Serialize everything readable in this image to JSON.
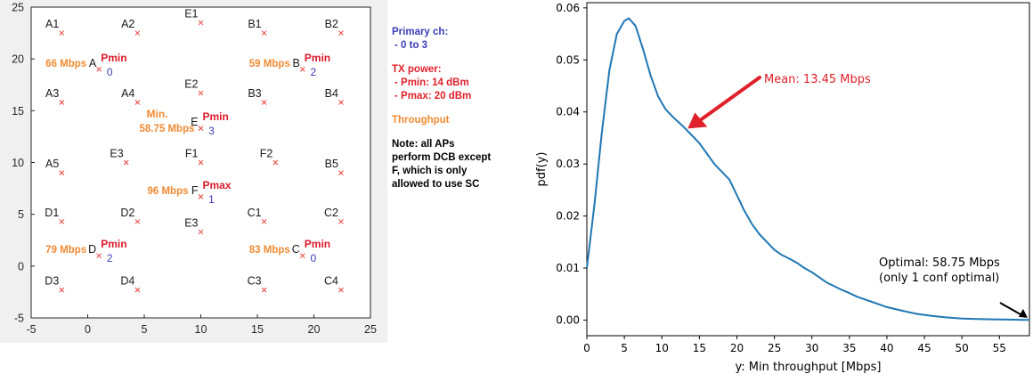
{
  "layout_plot": {
    "xticks": [
      -5,
      0,
      5,
      10,
      15,
      20,
      25
    ],
    "yticks": [
      -5,
      0,
      5,
      10,
      15,
      20,
      25
    ],
    "xlim": [
      -5,
      25
    ],
    "ylim": [
      -5,
      25
    ],
    "stations": [
      {
        "name": "A1",
        "x": -2.3,
        "y": 22.5
      },
      {
        "name": "A2",
        "x": 4.4,
        "y": 22.5
      },
      {
        "name": "B1",
        "x": 15.6,
        "y": 22.5
      },
      {
        "name": "B2",
        "x": 22.4,
        "y": 22.5
      },
      {
        "name": "E1",
        "x": 10,
        "y": 23.5
      },
      {
        "name": "A3",
        "x": -2.3,
        "y": 15.8
      },
      {
        "name": "A4",
        "x": 4.4,
        "y": 15.8
      },
      {
        "name": "B3",
        "x": 15.6,
        "y": 15.8
      },
      {
        "name": "B4",
        "x": 22.4,
        "y": 15.8
      },
      {
        "name": "E2",
        "x": 10,
        "y": 16.7
      },
      {
        "name": "A5",
        "x": -2.3,
        "y": 9
      },
      {
        "name": "E3",
        "x": 3.4,
        "y": 10
      },
      {
        "name": "F1",
        "x": 10,
        "y": 10
      },
      {
        "name": "F2",
        "x": 16.6,
        "y": 10
      },
      {
        "name": "B5",
        "x": 22.4,
        "y": 9
      },
      {
        "name": "D1",
        "x": -2.3,
        "y": 4.3
      },
      {
        "name": "D2",
        "x": 4.4,
        "y": 4.3
      },
      {
        "name": "C1",
        "x": 15.6,
        "y": 4.3
      },
      {
        "name": "C2",
        "x": 22.4,
        "y": 4.3
      },
      {
        "name": "E3",
        "x": 10,
        "y": 3.3
      },
      {
        "name": "D3",
        "x": -2.3,
        "y": -2.3
      },
      {
        "name": "D4",
        "x": 4.4,
        "y": -2.3
      },
      {
        "name": "C3",
        "x": 15.6,
        "y": -2.3
      },
      {
        "name": "C4",
        "x": 22.4,
        "y": -2.3
      }
    ],
    "aps": [
      {
        "name": "A",
        "x": 1,
        "y": 19,
        "power": "Pmin",
        "channel": "0",
        "throughput": "66 Mbps",
        "tp_side": "left"
      },
      {
        "name": "B",
        "x": 19,
        "y": 19,
        "power": "Pmin",
        "channel": "2",
        "throughput": "59 Mbps",
        "tp_side": "left"
      },
      {
        "name": "E",
        "x": 10,
        "y": 13.3,
        "power": "Pmin",
        "channel": "3",
        "throughput": "58.75 Mbps",
        "tp_side": "left",
        "min_label": "Min."
      },
      {
        "name": "F",
        "x": 10,
        "y": 6.7,
        "power": "Pmax",
        "channel": "1",
        "throughput": "96 Mbps",
        "tp_side": "left"
      },
      {
        "name": "D",
        "x": 1,
        "y": 1,
        "power": "Pmin",
        "channel": "2",
        "throughput": "79 Mbps",
        "tp_side": "left"
      },
      {
        "name": "C",
        "x": 19,
        "y": 1,
        "power": "Pmin",
        "channel": "0",
        "throughput": "83 Mbps",
        "tp_side": "left"
      }
    ]
  },
  "legend": {
    "primary_title": "Primary ch:",
    "primary_range": "- 0 to 3",
    "tx_title": "TX power:",
    "tx_pmin": "- Pmin: 14 dBm",
    "tx_pmax": "- Pmax: 20 dBm",
    "throughput": "Throughput",
    "note_bold": "Note",
    "note_line1": ": all APs",
    "note_line2": "perform DCB except",
    "note_line3": "F, which is only",
    "note_line4": "allowed to use SC"
  },
  "chart_data": {
    "type": "line",
    "xlabel": "y: Min throughput [Mbps]",
    "ylabel": "pdf(y)",
    "xlim": [
      0,
      59
    ],
    "ylim": [
      -0.003,
      0.061
    ],
    "xticks": [
      0,
      5,
      10,
      15,
      20,
      25,
      30,
      35,
      40,
      45,
      50,
      55
    ],
    "yticks": [
      0.0,
      0.01,
      0.02,
      0.03,
      0.04,
      0.05,
      0.06
    ],
    "ytick_labels": [
      "0.00",
      "0.01",
      "0.02",
      "0.03",
      "0.04",
      "0.05",
      "0.06"
    ],
    "color": "#1f77b4",
    "x": [
      0,
      1,
      2,
      3,
      4,
      5,
      5.6,
      6.5,
      7.5,
      8.5,
      9.5,
      10.5,
      11.5,
      13,
      14,
      15,
      16,
      17,
      18,
      19,
      20,
      21,
      22,
      23,
      24,
      25,
      26,
      27,
      28,
      29,
      30,
      31,
      32,
      33,
      34,
      35,
      36,
      37,
      38,
      39,
      40,
      42,
      44,
      46,
      48,
      50,
      52,
      54,
      56,
      58,
      59
    ],
    "y": [
      0.01,
      0.022,
      0.036,
      0.048,
      0.055,
      0.0575,
      0.058,
      0.0565,
      0.052,
      0.047,
      0.043,
      0.0405,
      0.039,
      0.037,
      0.0355,
      0.034,
      0.032,
      0.03,
      0.0285,
      0.027,
      0.024,
      0.021,
      0.0185,
      0.0165,
      0.015,
      0.0135,
      0.0125,
      0.0118,
      0.011,
      0.01,
      0.0092,
      0.0082,
      0.0072,
      0.0065,
      0.0058,
      0.0052,
      0.0045,
      0.004,
      0.0035,
      0.003,
      0.0025,
      0.0018,
      0.0012,
      0.0008,
      0.0005,
      0.0003,
      0.0002,
      0.00015,
      0.0001,
      5e-05,
      3e-05
    ],
    "annotations": [
      {
        "text": "Mean: 13.45 Mbps",
        "arrow_to": [
          13.45,
          0.0368
        ],
        "color": "#e0202a"
      },
      {
        "text_line1": "Optimal: 58.75 Mbps",
        "text_line2": "(only 1 conf optimal)",
        "arrow_to": [
          58.75,
          0.0001
        ],
        "color": "#000000"
      }
    ]
  },
  "colors": {
    "station_red": "#e8413c",
    "power_red": "#d91a2a",
    "channel_blue": "#3b3bbb",
    "throughput_orange": "#f08a32",
    "line_blue": "#1f77b4"
  }
}
